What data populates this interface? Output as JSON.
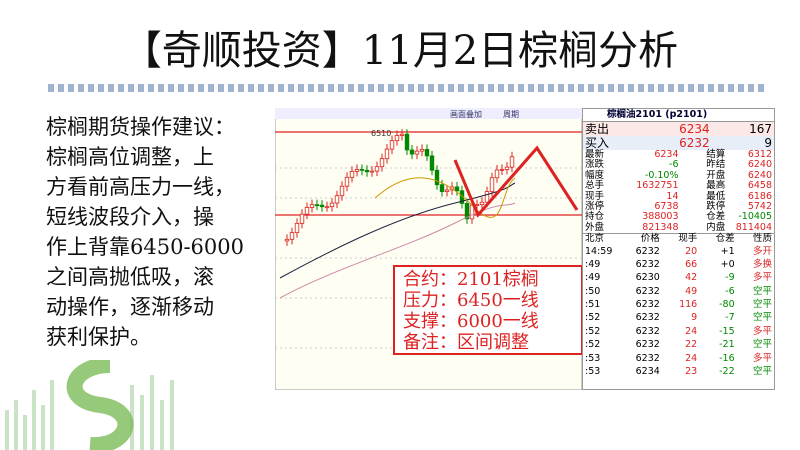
{
  "header": {
    "title": "【奇顺投资】11月2日棕榈分析"
  },
  "advice": {
    "lines": [
      "棕榈期货操作建议：",
      "棕榈高位调整，上",
      "方看前高压力一线，",
      "短线波段介入，操",
      "作上背靠6450-6000",
      "之间高抛低吸，滚",
      "动操作，逐渐移动",
      "获利保护。"
    ]
  },
  "chart": {
    "toolbar": [
      "画面叠加",
      "周期"
    ],
    "peak_label": "6510"
  },
  "info_box": {
    "lines": [
      "合约：2101棕榈",
      "压力：6450一线",
      "支撑：6000一线",
      "备注：区间调整"
    ]
  },
  "quote": {
    "title": "棕榈油2101 (p2101)",
    "orders": [
      [
        "卖出",
        "6234",
        "167"
      ],
      [
        "买入",
        "6232",
        "9"
      ]
    ],
    "stats": [
      [
        "最新",
        "6234",
        "结算",
        "6312"
      ],
      [
        "涨跌",
        "-6",
        "昨结",
        "6240"
      ],
      [
        "幅度",
        "-0.10%",
        "开盘",
        "6240"
      ],
      [
        "总手",
        "1632751",
        "最高",
        "6458"
      ],
      [
        "现手",
        "14",
        "最低",
        "6186"
      ],
      [
        "涨停",
        "6738",
        "跌停",
        "5742"
      ],
      [
        "持仓",
        "388003",
        "仓差",
        "-10405"
      ],
      [
        "外盘",
        "821348",
        "内盘",
        "811404"
      ]
    ],
    "tick_header": [
      "北京",
      "价格",
      "现手",
      "仓差",
      "性质"
    ],
    "ticks": [
      [
        "14:59",
        "6232",
        "20",
        "+1",
        "多开"
      ],
      [
        ":49",
        "6232",
        "66",
        "+0",
        "多换"
      ],
      [
        ":49",
        "6230",
        "42",
        "-9",
        "多平"
      ],
      [
        ":50",
        "6232",
        "49",
        "-6",
        "空平"
      ],
      [
        ":51",
        "6232",
        "116",
        "-80",
        "空平"
      ],
      [
        ":52",
        "6232",
        "9",
        "-7",
        "空平"
      ],
      [
        ":52",
        "6232",
        "24",
        "-15",
        "多平"
      ],
      [
        ":52",
        "6232",
        "22",
        "-21",
        "空平"
      ],
      [
        ":53",
        "6232",
        "24",
        "-16",
        "多平"
      ],
      [
        ":53",
        "6234",
        "23",
        "-22",
        "空平"
      ]
    ]
  }
}
